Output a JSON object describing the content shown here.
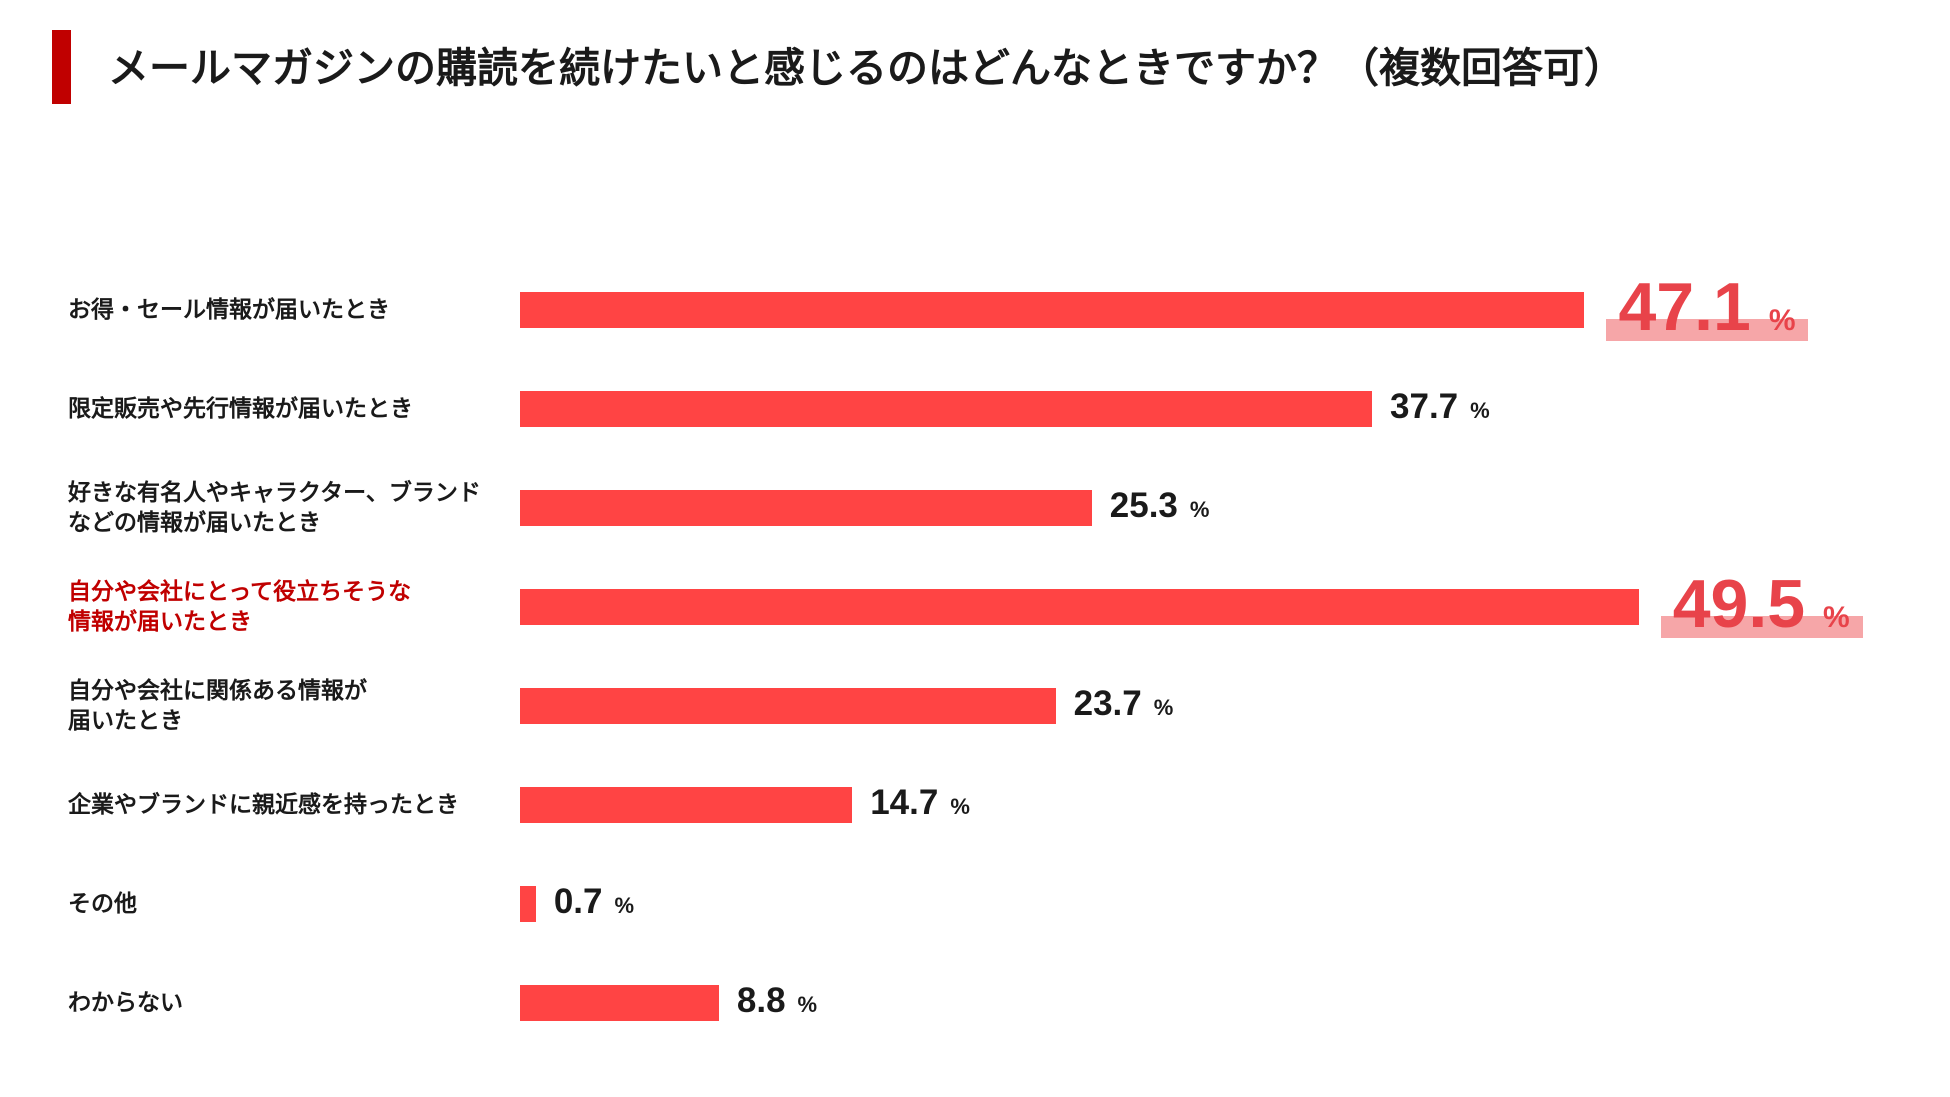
{
  "header": {
    "title": "メールマガジンの購読を続けたいと感じるのはどんなときですか？（複数回答可）"
  },
  "colors": {
    "bar": "#ff4444",
    "accent": "#c00000",
    "highlight_text": "#e8434a",
    "highlight_band": "#f6a6a8"
  },
  "chart_data": {
    "type": "bar",
    "orientation": "horizontal",
    "title": "メールマガジンの購読を続けたいと感じるのはどんなときですか？（複数回答可）",
    "unit": "%",
    "xlim": [
      0,
      55
    ],
    "grid": false,
    "categories": [
      "お得・セール情報が届いたとき",
      "限定販売や先行情報が届いたとき",
      "好きな有名人やキャラクター、ブランド\nなどの情報が届いたとき",
      "自分や会社にとって役立ちそうな\n情報が届いたとき",
      "自分や会社に関係ある情報が\n届いたとき",
      "企業やブランドに親近感を持ったとき",
      "その他",
      "わからない"
    ],
    "values": [
      47.1,
      37.7,
      25.3,
      49.5,
      23.7,
      14.7,
      0.7,
      8.8
    ],
    "value_labels": [
      "47.1",
      "37.7",
      "25.3",
      "49.5",
      "23.7",
      "14.7",
      "0.7",
      "8.8"
    ],
    "highlighted": [
      true,
      false,
      false,
      true,
      false,
      false,
      false,
      false
    ],
    "label_accent": [
      false,
      false,
      false,
      true,
      false,
      false,
      false,
      false
    ]
  }
}
